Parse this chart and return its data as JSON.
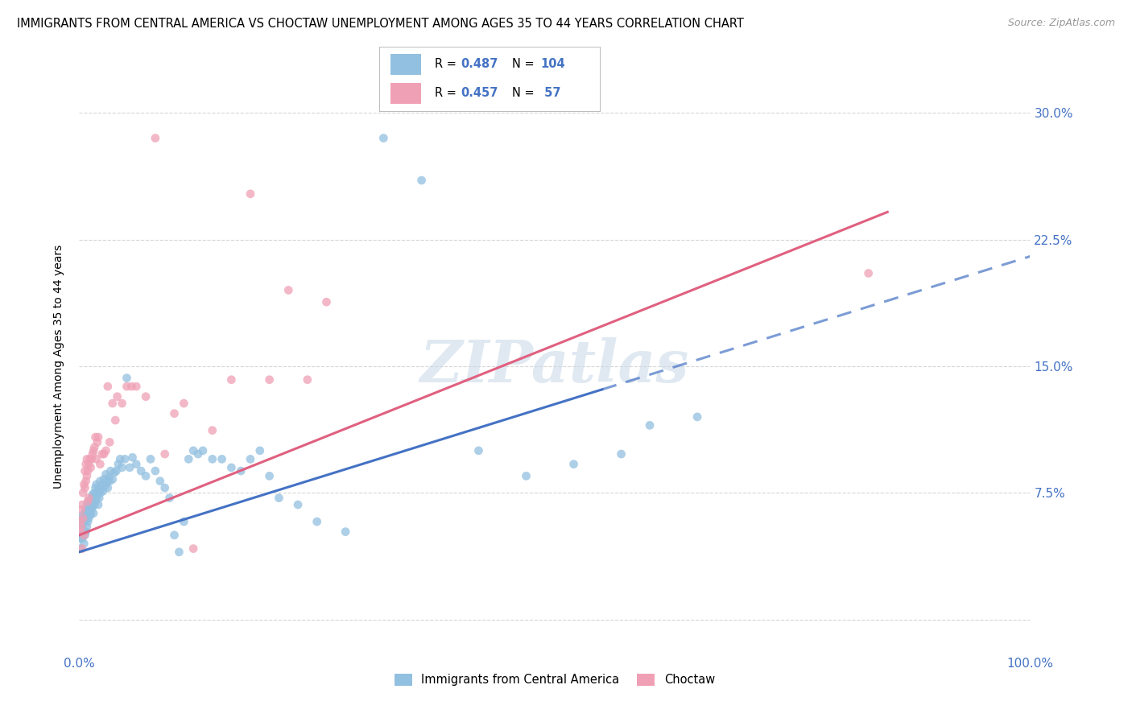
{
  "title": "IMMIGRANTS FROM CENTRAL AMERICA VS CHOCTAW UNEMPLOYMENT AMONG AGES 35 TO 44 YEARS CORRELATION CHART",
  "source": "Source: ZipAtlas.com",
  "ylabel": "Unemployment Among Ages 35 to 44 years",
  "xlim": [
    0.0,
    1.0
  ],
  "ylim": [
    -0.02,
    0.32
  ],
  "yticks": [
    0.0,
    0.075,
    0.15,
    0.225,
    0.3
  ],
  "ytick_labels": [
    "",
    "7.5%",
    "15.0%",
    "22.5%",
    "30.0%"
  ],
  "xticks": [
    0.0,
    0.2,
    0.4,
    0.6,
    0.8,
    1.0
  ],
  "xtick_labels": [
    "0.0%",
    "",
    "",
    "",
    "",
    "100.0%"
  ],
  "blue_color": "#92c0e0",
  "pink_color": "#f0a0b5",
  "blue_line_color": "#4472c4",
  "pink_line_color": "#e06080",
  "blue_R": 0.487,
  "blue_N": 104,
  "pink_R": 0.457,
  "pink_N": 57,
  "blue_line_solid_end": 0.55,
  "pink_line_solid_end": 0.85,
  "blue_line_intercept": 0.04,
  "blue_line_slope": 0.175,
  "pink_line_intercept": 0.05,
  "pink_line_slope": 0.225,
  "watermark": "ZIPatlas",
  "watermark_color": "#c8d8e8",
  "background_color": "#ffffff",
  "grid_color": "#cccccc",
  "title_fontsize": 10.5,
  "axis_label_color": "#4472c4",
  "tick_fontsize": 11,
  "scatter_alpha": 0.75,
  "scatter_size": 60,
  "blue_x": [
    0.001,
    0.001,
    0.002,
    0.002,
    0.003,
    0.003,
    0.003,
    0.004,
    0.004,
    0.004,
    0.005,
    0.005,
    0.005,
    0.006,
    0.006,
    0.006,
    0.007,
    0.007,
    0.007,
    0.008,
    0.008,
    0.008,
    0.009,
    0.009,
    0.01,
    0.01,
    0.01,
    0.011,
    0.011,
    0.012,
    0.012,
    0.013,
    0.013,
    0.014,
    0.014,
    0.015,
    0.015,
    0.016,
    0.016,
    0.017,
    0.017,
    0.018,
    0.018,
    0.019,
    0.02,
    0.02,
    0.021,
    0.022,
    0.022,
    0.023,
    0.024,
    0.025,
    0.026,
    0.027,
    0.028,
    0.029,
    0.03,
    0.031,
    0.032,
    0.033,
    0.035,
    0.037,
    0.039,
    0.041,
    0.043,
    0.045,
    0.048,
    0.05,
    0.053,
    0.056,
    0.06,
    0.065,
    0.07,
    0.075,
    0.08,
    0.085,
    0.09,
    0.095,
    0.1,
    0.105,
    0.11,
    0.115,
    0.12,
    0.125,
    0.13,
    0.14,
    0.15,
    0.16,
    0.17,
    0.18,
    0.19,
    0.2,
    0.21,
    0.23,
    0.25,
    0.28,
    0.32,
    0.36,
    0.42,
    0.47,
    0.52,
    0.57,
    0.6,
    0.65
  ],
  "blue_y": [
    0.042,
    0.048,
    0.05,
    0.055,
    0.048,
    0.055,
    0.06,
    0.05,
    0.058,
    0.062,
    0.045,
    0.052,
    0.058,
    0.05,
    0.058,
    0.063,
    0.052,
    0.06,
    0.065,
    0.055,
    0.062,
    0.068,
    0.058,
    0.064,
    0.06,
    0.066,
    0.07,
    0.063,
    0.068,
    0.062,
    0.07,
    0.065,
    0.072,
    0.067,
    0.074,
    0.063,
    0.072,
    0.068,
    0.075,
    0.07,
    0.078,
    0.072,
    0.08,
    0.074,
    0.068,
    0.077,
    0.072,
    0.075,
    0.082,
    0.077,
    0.08,
    0.076,
    0.083,
    0.079,
    0.086,
    0.081,
    0.078,
    0.084,
    0.082,
    0.088,
    0.083,
    0.087,
    0.088,
    0.092,
    0.095,
    0.09,
    0.095,
    0.143,
    0.09,
    0.096,
    0.092,
    0.088,
    0.085,
    0.095,
    0.088,
    0.082,
    0.078,
    0.072,
    0.05,
    0.04,
    0.058,
    0.095,
    0.1,
    0.098,
    0.1,
    0.095,
    0.095,
    0.09,
    0.088,
    0.095,
    0.1,
    0.085,
    0.072,
    0.068,
    0.058,
    0.052,
    0.285,
    0.26,
    0.1,
    0.085,
    0.092,
    0.098,
    0.115,
    0.12
  ],
  "pink_x": [
    0.001,
    0.001,
    0.002,
    0.002,
    0.003,
    0.003,
    0.004,
    0.004,
    0.005,
    0.005,
    0.006,
    0.006,
    0.007,
    0.007,
    0.008,
    0.008,
    0.009,
    0.009,
    0.01,
    0.01,
    0.011,
    0.012,
    0.013,
    0.014,
    0.015,
    0.016,
    0.017,
    0.018,
    0.019,
    0.02,
    0.022,
    0.024,
    0.026,
    0.028,
    0.03,
    0.032,
    0.035,
    0.038,
    0.04,
    0.045,
    0.05,
    0.055,
    0.06,
    0.07,
    0.08,
    0.09,
    0.1,
    0.11,
    0.12,
    0.14,
    0.16,
    0.18,
    0.2,
    0.22,
    0.24,
    0.26,
    0.83
  ],
  "pink_y": [
    0.052,
    0.058,
    0.055,
    0.065,
    0.042,
    0.068,
    0.06,
    0.075,
    0.05,
    0.08,
    0.078,
    0.088,
    0.082,
    0.092,
    0.085,
    0.095,
    0.07,
    0.088,
    0.072,
    0.092,
    0.095,
    0.09,
    0.095,
    0.098,
    0.1,
    0.102,
    0.108,
    0.095,
    0.105,
    0.108,
    0.092,
    0.098,
    0.098,
    0.1,
    0.138,
    0.105,
    0.128,
    0.118,
    0.132,
    0.128,
    0.138,
    0.138,
    0.138,
    0.132,
    0.285,
    0.098,
    0.122,
    0.128,
    0.042,
    0.112,
    0.142,
    0.252,
    0.142,
    0.195,
    0.142,
    0.188,
    0.205
  ]
}
